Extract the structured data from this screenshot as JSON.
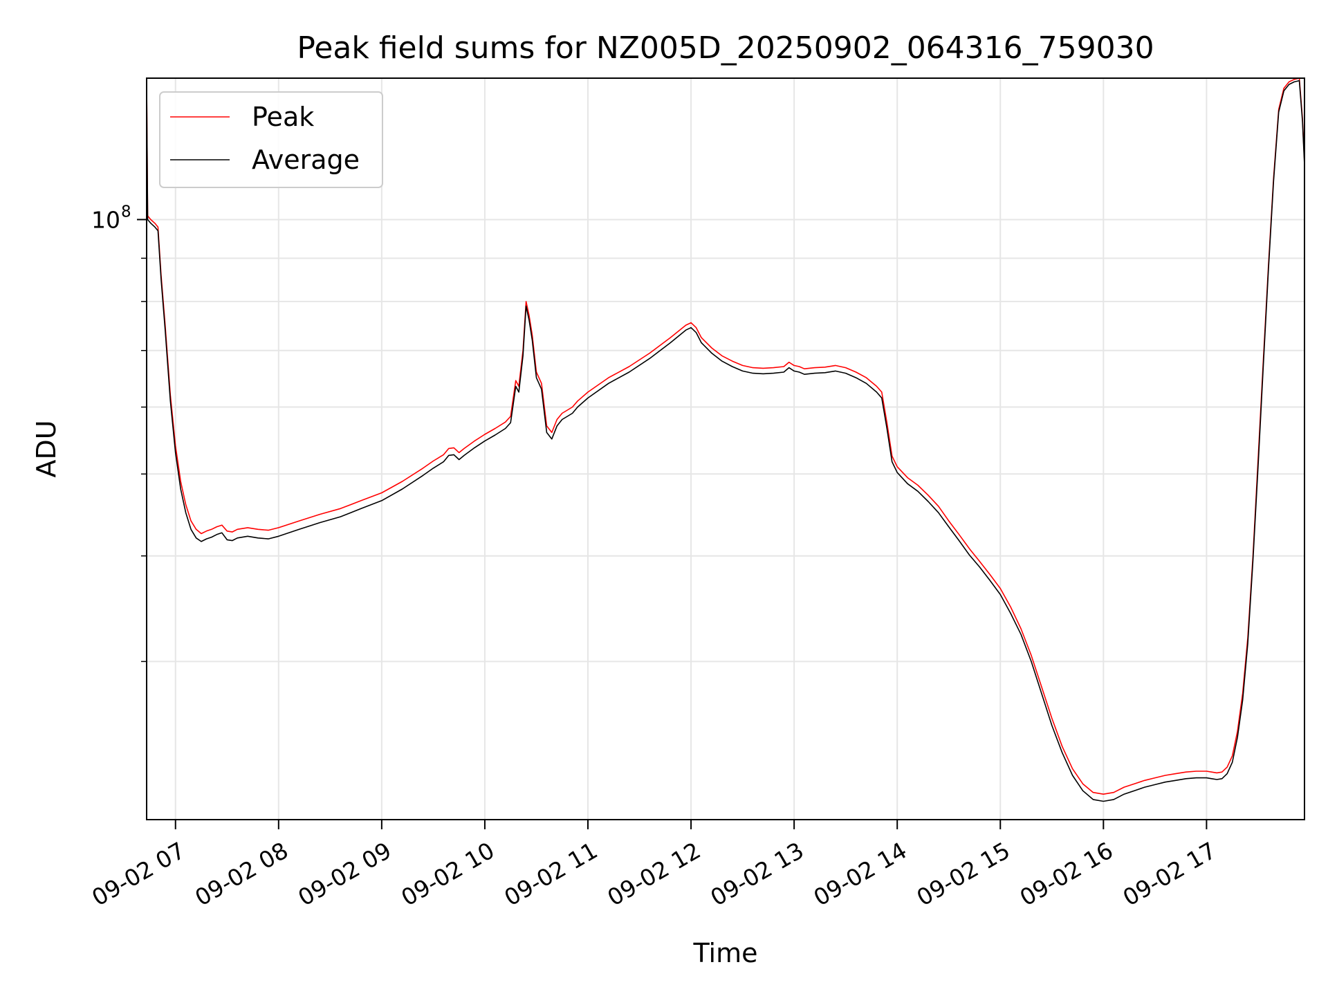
{
  "chart_data": {
    "type": "line",
    "title": "Peak field sums for NZ005D_20250902_064316_759030",
    "xlabel": "Time",
    "ylabel": "ADU",
    "yscale": "log",
    "x_unit": "hour of 2025-09-02",
    "xlim": [
      6.72,
      17.95
    ],
    "ylim": [
      19500000,
      147000000
    ],
    "x_ticks": [
      {
        "value": 7,
        "label": "09-02 07"
      },
      {
        "value": 8,
        "label": "09-02 08"
      },
      {
        "value": 9,
        "label": "09-02 09"
      },
      {
        "value": 10,
        "label": "09-02 10"
      },
      {
        "value": 11,
        "label": "09-02 11"
      },
      {
        "value": 12,
        "label": "09-02 12"
      },
      {
        "value": 13,
        "label": "09-02 13"
      },
      {
        "value": 14,
        "label": "09-02 14"
      },
      {
        "value": 15,
        "label": "09-02 15"
      },
      {
        "value": 16,
        "label": "09-02 16"
      },
      {
        "value": 17,
        "label": "09-02 17"
      }
    ],
    "y_major_ticks": [
      {
        "value": 100000000,
        "base": "10",
        "exponent": "8"
      }
    ],
    "y_minor_ticks": [
      30000000,
      40000000,
      50000000,
      60000000,
      70000000,
      80000000,
      90000000
    ],
    "grid": true,
    "legend_position": "upper-left",
    "series": [
      {
        "name": "Peak",
        "color": "#ff0000",
        "x": [
          6.72,
          6.73,
          6.76,
          6.8,
          6.83,
          6.86,
          6.9,
          6.95,
          7.0,
          7.05,
          7.1,
          7.15,
          7.2,
          7.25,
          7.3,
          7.35,
          7.4,
          7.45,
          7.5,
          7.55,
          7.6,
          7.7,
          7.8,
          7.9,
          8.0,
          8.2,
          8.4,
          8.6,
          8.8,
          9.0,
          9.2,
          9.4,
          9.5,
          9.6,
          9.65,
          9.7,
          9.75,
          9.8,
          9.9,
          10.0,
          10.1,
          10.2,
          10.25,
          10.3,
          10.33,
          10.37,
          10.4,
          10.43,
          10.46,
          10.5,
          10.55,
          10.6,
          10.65,
          10.7,
          10.75,
          10.8,
          10.85,
          10.9,
          11.0,
          11.2,
          11.4,
          11.6,
          11.8,
          11.95,
          12.0,
          12.05,
          12.1,
          12.2,
          12.3,
          12.4,
          12.5,
          12.6,
          12.7,
          12.8,
          12.9,
          12.95,
          13.0,
          13.05,
          13.1,
          13.2,
          13.3,
          13.4,
          13.5,
          13.6,
          13.7,
          13.8,
          13.85,
          13.9,
          13.95,
          14.0,
          14.1,
          14.2,
          14.3,
          14.4,
          14.5,
          14.6,
          14.7,
          14.8,
          14.9,
          15.0,
          15.1,
          15.2,
          15.3,
          15.4,
          15.5,
          15.6,
          15.7,
          15.8,
          15.9,
          16.0,
          16.1,
          16.2,
          16.3,
          16.4,
          16.5,
          16.6,
          16.7,
          16.8,
          16.9,
          17.0,
          17.05,
          17.1,
          17.15,
          17.2,
          17.25,
          17.3,
          17.35,
          17.4,
          17.45,
          17.5,
          17.55,
          17.6,
          17.65,
          17.7,
          17.75,
          17.8,
          17.85,
          17.9,
          17.93,
          17.95
        ],
        "values": [
          146000000,
          101000000,
          100000000,
          99000000,
          98000000,
          86000000,
          75000000,
          62000000,
          54000000,
          49000000,
          46000000,
          44000000,
          43000000,
          42500000,
          42800000,
          43000000,
          43300000,
          43500000,
          42800000,
          42700000,
          43000000,
          43200000,
          43000000,
          42900000,
          43200000,
          44000000,
          44800000,
          45500000,
          46500000,
          47500000,
          49000000,
          50800000,
          51800000,
          52700000,
          53600000,
          53700000,
          53000000,
          53600000,
          54700000,
          55700000,
          56600000,
          57600000,
          58500000,
          64500000,
          63500000,
          70000000,
          80000000,
          77000000,
          73000000,
          66000000,
          64000000,
          57000000,
          56000000,
          58000000,
          59000000,
          59500000,
          60000000,
          61000000,
          62500000,
          65000000,
          67000000,
          69500000,
          72500000,
          75000000,
          75500000,
          74500000,
          72500000,
          70500000,
          69000000,
          68000000,
          67200000,
          66800000,
          66700000,
          66800000,
          67000000,
          67800000,
          67200000,
          67000000,
          66600000,
          66800000,
          66900000,
          67200000,
          66800000,
          66000000,
          65000000,
          63500000,
          62500000,
          57500000,
          52500000,
          51000000,
          49500000,
          48500000,
          47200000,
          45800000,
          44000000,
          42400000,
          40800000,
          39400000,
          38000000,
          36600000,
          34800000,
          32800000,
          30500000,
          28000000,
          25700000,
          23800000,
          22400000,
          21500000,
          21000000,
          20900000,
          21000000,
          21300000,
          21500000,
          21700000,
          21850000,
          22000000,
          22100000,
          22200000,
          22250000,
          22250000,
          22200000,
          22150000,
          22200000,
          22500000,
          23200000,
          24800000,
          27500000,
          32000000,
          40000000,
          52000000,
          68000000,
          88000000,
          112000000,
          135000000,
          143000000,
          145500000,
          146500000,
          147000000,
          132000000,
          117000000
        ]
      },
      {
        "name": "Average",
        "color": "#000000",
        "x": [
          6.72,
          6.73,
          6.76,
          6.8,
          6.83,
          6.86,
          6.9,
          6.95,
          7.0,
          7.05,
          7.1,
          7.15,
          7.2,
          7.25,
          7.3,
          7.35,
          7.4,
          7.45,
          7.5,
          7.55,
          7.6,
          7.7,
          7.8,
          7.9,
          8.0,
          8.2,
          8.4,
          8.6,
          8.8,
          9.0,
          9.2,
          9.4,
          9.5,
          9.6,
          9.65,
          9.7,
          9.75,
          9.8,
          9.9,
          10.0,
          10.1,
          10.2,
          10.25,
          10.3,
          10.33,
          10.37,
          10.4,
          10.43,
          10.46,
          10.5,
          10.55,
          10.6,
          10.65,
          10.7,
          10.75,
          10.8,
          10.85,
          10.9,
          11.0,
          11.2,
          11.4,
          11.6,
          11.8,
          11.95,
          12.0,
          12.05,
          12.1,
          12.2,
          12.3,
          12.4,
          12.5,
          12.6,
          12.7,
          12.8,
          12.9,
          12.95,
          13.0,
          13.05,
          13.1,
          13.2,
          13.3,
          13.4,
          13.5,
          13.6,
          13.7,
          13.8,
          13.85,
          13.9,
          13.95,
          14.0,
          14.1,
          14.2,
          14.3,
          14.4,
          14.5,
          14.6,
          14.7,
          14.8,
          14.9,
          15.0,
          15.1,
          15.2,
          15.3,
          15.4,
          15.5,
          15.6,
          15.7,
          15.8,
          15.9,
          16.0,
          16.1,
          16.2,
          16.3,
          16.4,
          16.5,
          16.6,
          16.7,
          16.8,
          16.9,
          17.0,
          17.05,
          17.1,
          17.15,
          17.2,
          17.25,
          17.3,
          17.35,
          17.4,
          17.45,
          17.5,
          17.55,
          17.6,
          17.65,
          17.7,
          17.75,
          17.8,
          17.85,
          17.9,
          17.93,
          17.95
        ],
        "values": [
          145000000,
          100000000,
          99000000,
          98000000,
          97000000,
          85000000,
          74000000,
          61000000,
          53000000,
          48000000,
          45000000,
          43000000,
          42000000,
          41600000,
          41900000,
          42100000,
          42400000,
          42600000,
          41800000,
          41700000,
          42000000,
          42200000,
          42000000,
          41900000,
          42200000,
          43000000,
          43800000,
          44500000,
          45500000,
          46500000,
          48000000,
          49800000,
          50800000,
          51700000,
          52600000,
          52700000,
          52000000,
          52600000,
          53700000,
          54700000,
          55600000,
          56600000,
          57500000,
          63500000,
          62500000,
          69000000,
          79000000,
          76000000,
          72000000,
          65000000,
          63000000,
          56000000,
          55000000,
          57000000,
          58000000,
          58500000,
          59000000,
          60000000,
          61500000,
          64000000,
          66000000,
          68500000,
          71500000,
          74000000,
          74500000,
          73500000,
          71500000,
          69500000,
          68000000,
          67000000,
          66200000,
          65800000,
          65700000,
          65800000,
          66000000,
          66800000,
          66200000,
          66000000,
          65600000,
          65800000,
          65900000,
          66200000,
          65800000,
          65000000,
          64000000,
          62500000,
          61500000,
          56600000,
          51700000,
          50200000,
          48700000,
          47700000,
          46400000,
          45000000,
          43300000,
          41700000,
          40100000,
          38800000,
          37400000,
          36000000,
          34200000,
          32300000,
          30000000,
          27500000,
          25200000,
          23400000,
          22000000,
          21100000,
          20600000,
          20500000,
          20600000,
          20900000,
          21100000,
          21300000,
          21450000,
          21600000,
          21700000,
          21800000,
          21850000,
          21850000,
          21800000,
          21750000,
          21800000,
          22100000,
          22800000,
          24400000,
          27000000,
          31500000,
          39500000,
          51000000,
          67000000,
          87000000,
          111000000,
          134000000,
          142000000,
          144500000,
          145500000,
          146000000,
          131000000,
          116000000
        ]
      }
    ]
  }
}
